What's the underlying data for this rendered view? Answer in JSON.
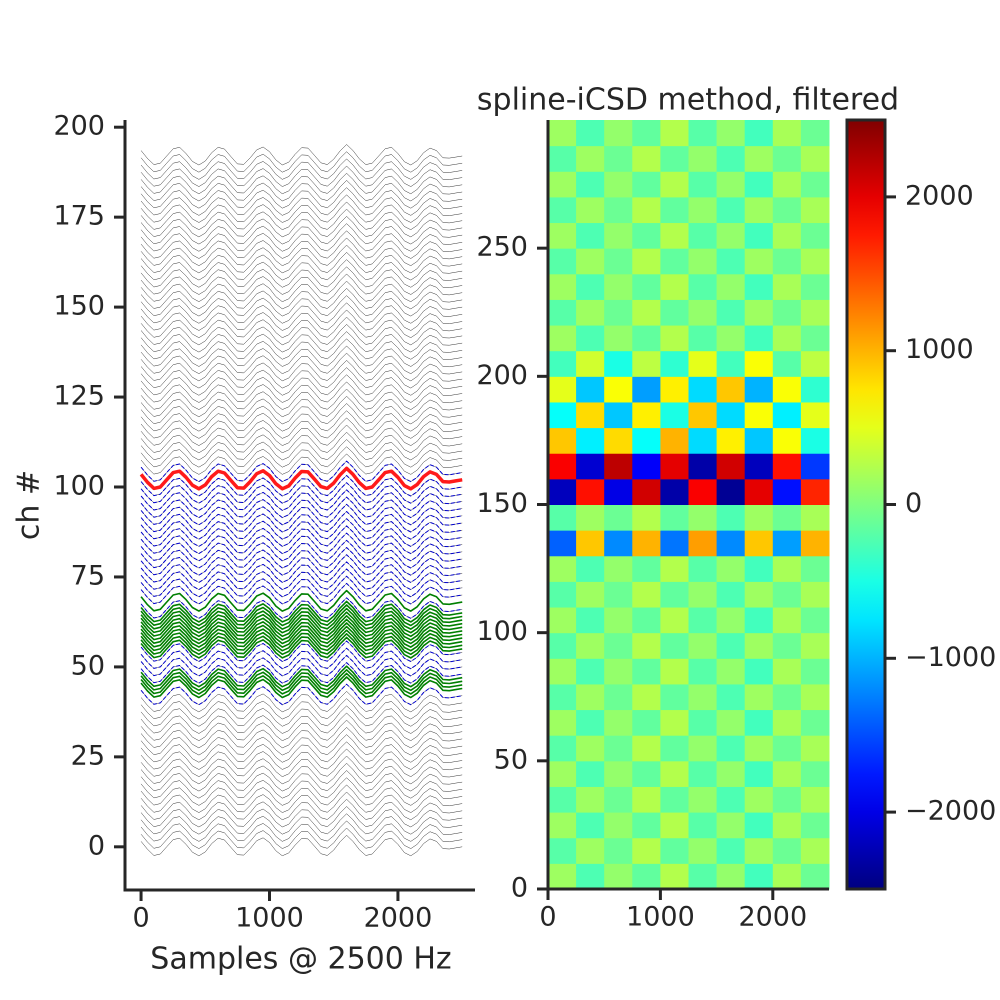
{
  "chart_data": [
    {
      "type": "traces",
      "xlabel": "Samples @ 2500 Hz",
      "ylabel": "ch #",
      "xlim": [
        -125,
        2600
      ],
      "ylim": [
        -12,
        202
      ],
      "xticks": [
        0,
        1000,
        2000
      ],
      "yticks": [
        0,
        25,
        50,
        75,
        100,
        125,
        150,
        175,
        200
      ],
      "x": [
        0,
        50,
        100,
        150,
        200,
        250,
        300,
        350,
        400,
        450,
        500,
        550,
        600,
        650,
        700,
        750,
        800,
        850,
        900,
        950,
        1000,
        1050,
        1100,
        1150,
        1200,
        1250,
        1300,
        1350,
        1400,
        1450,
        1500,
        1550,
        1600,
        1650,
        1700,
        1750,
        1800,
        1850,
        1900,
        1950,
        2000,
        2050,
        2100,
        2150,
        2200,
        2250,
        2300,
        2350,
        2400,
        2450,
        2500
      ],
      "waveform": [
        1.5,
        -0.7,
        -2.4,
        -2.0,
        0,
        2.0,
        2.4,
        0.7,
        -1.5,
        -2.5,
        -1.4,
        0.9,
        2.4,
        1.9,
        -0.2,
        -2.2,
        -2.3,
        -0.5,
        1.7,
        2.5,
        1.2,
        -1.1,
        -2.5,
        -1.7,
        0.5,
        2.3,
        2.2,
        0.2,
        -1.9,
        -2.4,
        -0.9,
        1.4,
        3.2,
        1.5,
        -0.8,
        -2.4,
        -2.0,
        0,
        2.0,
        2.4,
        0.7,
        -1.6,
        -2.5,
        -1.3,
        0.9,
        2.2,
        1.5,
        -0.5,
        -0.6,
        -0.3,
        0
      ],
      "traces": [
        {
          "color": "#000000",
          "style": "solid",
          "width": 0.4,
          "offsets": [
            0,
            2,
            4,
            6,
            8,
            10,
            12,
            14,
            16,
            18,
            20,
            22,
            24,
            26,
            28,
            30,
            32,
            34,
            36,
            38,
            40,
            42,
            44,
            46,
            48,
            50,
            52,
            54,
            56,
            58,
            60,
            62,
            64,
            66,
            68,
            70,
            72,
            74,
            76,
            78,
            80,
            82,
            84,
            86,
            88,
            90,
            92,
            94,
            96,
            98,
            100,
            102,
            104,
            106,
            108,
            110,
            112,
            114,
            116,
            118,
            120,
            122,
            124,
            126,
            128,
            130,
            132,
            134,
            136,
            138,
            140,
            142,
            144,
            146,
            148,
            150,
            152,
            154,
            156,
            158,
            160,
            162,
            164,
            166,
            168,
            170,
            172,
            174,
            176,
            178,
            180,
            182,
            184,
            186,
            188,
            190,
            192
          ]
        },
        {
          "color": "#0000cc",
          "style": "dashed",
          "width": 1,
          "offsets": [
            42,
            44,
            46,
            48,
            50,
            52,
            54,
            56,
            58,
            60,
            62,
            64,
            66,
            68,
            70,
            72,
            74,
            76,
            78,
            80,
            82,
            84,
            86,
            88,
            90,
            92,
            94,
            96,
            98,
            100,
            104
          ]
        },
        {
          "color": "#008000",
          "style": "solid",
          "width": 1.6,
          "offsets": [
            44,
            45,
            46,
            47,
            55,
            56,
            57,
            58,
            59,
            60,
            61,
            62,
            63,
            64,
            65,
            68
          ]
        },
        {
          "color": "#ff1a1a",
          "style": "solid",
          "width": 3.5,
          "offsets": [
            102
          ]
        }
      ]
    },
    {
      "type": "heatmap",
      "title": "spline-iCSD method, filtered",
      "xlim": [
        0,
        2500
      ],
      "ylim": [
        0,
        300
      ],
      "xticks": [
        0,
        1000,
        2000
      ],
      "yticks": [
        0,
        50,
        100,
        150,
        200,
        250
      ],
      "clim": [
        -2500,
        2500
      ],
      "cticks": [
        {
          "value": -2000,
          "label": "−2000"
        },
        {
          "value": -1000,
          "label": "−1000"
        },
        0,
        1000,
        2000
      ],
      "z": [
        [
          150,
          -250,
          100,
          -150,
          250,
          -200,
          100,
          -300,
          200,
          -100
        ],
        [
          -200,
          150,
          -100,
          250,
          -150,
          100,
          -250,
          150,
          -100,
          200
        ],
        [
          150,
          -250,
          100,
          -150,
          250,
          -200,
          100,
          -300,
          200,
          -100
        ],
        [
          -200,
          150,
          -100,
          250,
          -150,
          100,
          -250,
          150,
          -100,
          200
        ],
        [
          150,
          -250,
          100,
          -150,
          250,
          -200,
          100,
          -300,
          200,
          -100
        ],
        [
          -200,
          150,
          -100,
          250,
          -150,
          100,
          -250,
          150,
          -100,
          200
        ],
        [
          150,
          -250,
          100,
          -150,
          250,
          -200,
          100,
          -300,
          200,
          -100
        ],
        [
          -200,
          150,
          -100,
          250,
          -150,
          100,
          -250,
          150,
          -100,
          200
        ],
        [
          150,
          -250,
          100,
          -150,
          250,
          -200,
          100,
          -300,
          200,
          -100
        ],
        [
          -200,
          150,
          -100,
          250,
          -150,
          100,
          -250,
          150,
          -100,
          200
        ],
        [
          150,
          -250,
          100,
          -150,
          250,
          -200,
          100,
          -300,
          200,
          -100
        ],
        [
          -200,
          150,
          -100,
          250,
          -150,
          100,
          -250,
          150,
          -100,
          200
        ],
        [
          150,
          -250,
          100,
          -150,
          250,
          -200,
          100,
          -300,
          200,
          -100
        ],
        [
          -1400,
          900,
          -1200,
          1000,
          -1300,
          1100,
          -1200,
          900,
          -1100,
          1000
        ],
        [
          -200,
          150,
          -100,
          250,
          -150,
          100,
          -250,
          150,
          -100,
          200
        ],
        [
          -2200,
          1800,
          -2000,
          2100,
          -2300,
          1900,
          -2400,
          2000,
          -1800,
          1700
        ],
        [
          1900,
          -2100,
          2200,
          -1900,
          2000,
          -2300,
          2100,
          -2200,
          1800,
          -1600
        ],
        [
          900,
          -700,
          800,
          -600,
          1000,
          -800,
          700,
          -900,
          600,
          -500
        ],
        [
          -600,
          800,
          -900,
          700,
          -500,
          900,
          -800,
          600,
          -700,
          500
        ],
        [
          500,
          -900,
          600,
          -1100,
          700,
          -800,
          900,
          -1000,
          600,
          -400
        ],
        [
          -300,
          400,
          -500,
          300,
          -400,
          500,
          -300,
          600,
          -200,
          300
        ],
        [
          150,
          -250,
          100,
          -150,
          250,
          -200,
          100,
          -300,
          200,
          -100
        ],
        [
          -200,
          150,
          -100,
          250,
          -150,
          100,
          -250,
          150,
          -100,
          200
        ],
        [
          150,
          -250,
          100,
          -150,
          250,
          -200,
          100,
          -300,
          200,
          -100
        ],
        [
          -200,
          150,
          -100,
          250,
          -150,
          100,
          -250,
          150,
          -100,
          200
        ],
        [
          150,
          -250,
          100,
          -150,
          250,
          -200,
          100,
          -300,
          200,
          -100
        ],
        [
          -200,
          150,
          -100,
          250,
          -150,
          100,
          -250,
          150,
          -100,
          200
        ],
        [
          150,
          -250,
          100,
          -150,
          250,
          -200,
          100,
          -300,
          200,
          -100
        ],
        [
          -200,
          150,
          -100,
          250,
          -150,
          100,
          -250,
          150,
          -100,
          200
        ],
        [
          150,
          -250,
          100,
          -150,
          250,
          -200,
          100,
          -300,
          200,
          -100
        ]
      ]
    }
  ]
}
